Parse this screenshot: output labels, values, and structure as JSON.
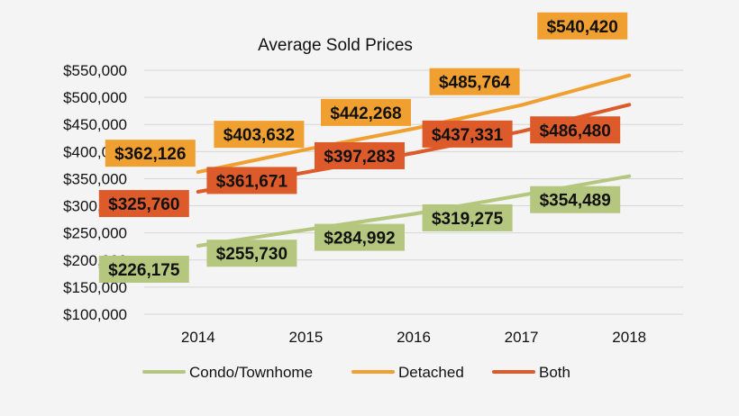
{
  "chart_data": {
    "type": "line",
    "title": "Average Sold Prices",
    "xlabel": "",
    "ylabel": "",
    "categories": [
      "2014",
      "2015",
      "2016",
      "2017",
      "2018"
    ],
    "ylim": [
      100000,
      550000
    ],
    "yticks": [
      "$100,000",
      "$150,000",
      "$200,000",
      "$250,000",
      "$300,000",
      "$350,000",
      "$400,000",
      "$450,000",
      "$500,000",
      "$550,000"
    ],
    "grid": true,
    "legend_position": "bottom",
    "series": [
      {
        "name": "Condo/Townhome",
        "color": "#b5c77f",
        "values": [
          226175,
          255730,
          284992,
          319275,
          354489
        ],
        "labels": [
          "$226,175",
          "$255,730",
          "$284,992",
          "$319,275",
          "$354,489"
        ]
      },
      {
        "name": "Detached",
        "color": "#f0a030",
        "values": [
          362126,
          403632,
          442268,
          485764,
          540420
        ],
        "labels": [
          "$362,126",
          "$403,632",
          "$442,268",
          "$485,764",
          "$540,420"
        ]
      },
      {
        "name": "Both",
        "color": "#dd5a2b",
        "values": [
          325760,
          361671,
          397283,
          437331,
          486480
        ],
        "labels": [
          "$325,760",
          "$361,671",
          "$397,283",
          "$437,331",
          "$486,480"
        ]
      }
    ]
  }
}
